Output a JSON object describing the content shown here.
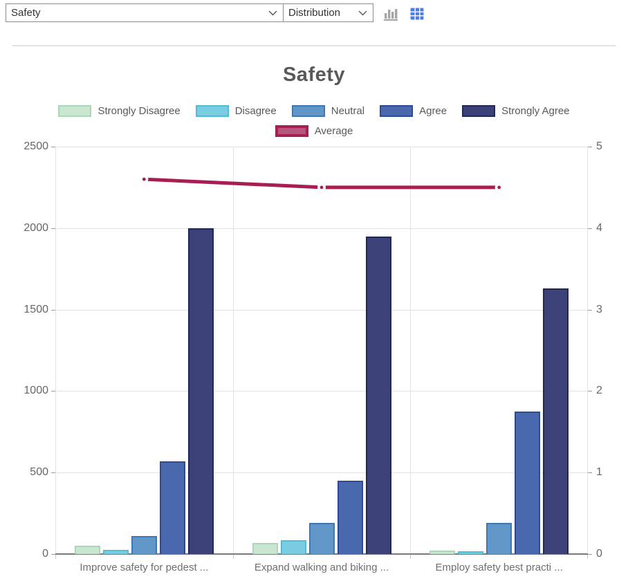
{
  "toolbar": {
    "metric_select": {
      "value": "Safety"
    },
    "view_select": {
      "value": "Distribution"
    },
    "chart_view_icon": "bar-chart-icon",
    "table_view_icon": "table-grid-icon",
    "table_icon_color": "#4c7ee8",
    "chart_icon_color": "#a6a6a6"
  },
  "chart_data": {
    "type": "bar",
    "title": "Safety",
    "categories": [
      "Improve safety for pedest ...",
      "Expand walking and biking ...",
      "Employ safety best practi ..."
    ],
    "series": [
      {
        "name": "Strongly Disagree",
        "values": [
          50,
          70,
          20
        ],
        "fill": "#c9e6d0",
        "border": "#a9d7b8"
      },
      {
        "name": "Disagree",
        "values": [
          25,
          85,
          15
        ],
        "fill": "#79cce2",
        "border": "#4fbcd8"
      },
      {
        "name": "Neutral",
        "values": [
          110,
          190,
          190
        ],
        "fill": "#6096c8",
        "border": "#3c78b4"
      },
      {
        "name": "Agree",
        "values": [
          570,
          450,
          875
        ],
        "fill": "#4a68ae",
        "border": "#2c4a96"
      },
      {
        "name": "Strongly Agree",
        "values": [
          2000,
          1950,
          1630
        ],
        "fill": "#3c4277",
        "border": "#20285a"
      }
    ],
    "line_series": {
      "name": "Average",
      "values": [
        4.6,
        4.5,
        4.5
      ],
      "color": "#a81d52",
      "legend_fill": "#b4577f",
      "axis": "right"
    },
    "left_axis": {
      "min": 0,
      "max": 2500,
      "ticks": [
        0,
        500,
        1000,
        1500,
        2000,
        2500
      ]
    },
    "right_axis": {
      "min": 0,
      "max": 5,
      "ticks": [
        0,
        1,
        2,
        3,
        4,
        5
      ]
    },
    "legend_position": "top",
    "grid": true
  }
}
